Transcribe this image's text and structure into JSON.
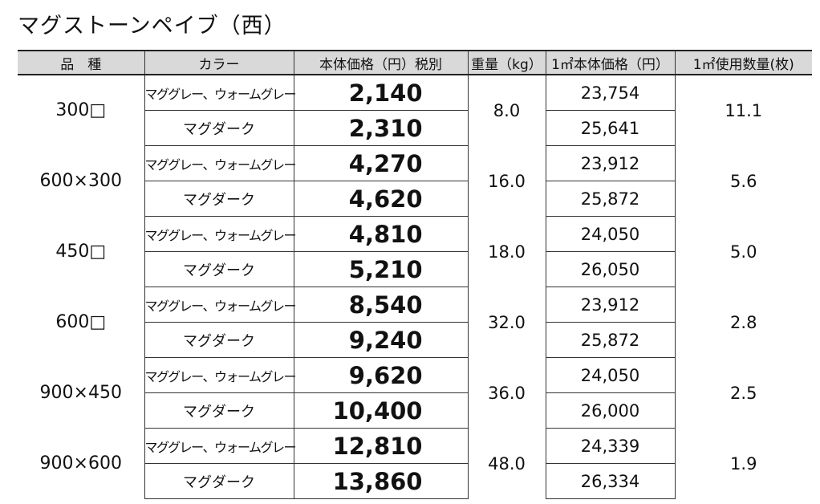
{
  "title": "マグストーンペイブ（西）",
  "headers": [
    "品　種",
    "カラー",
    "本体価格（円）税別",
    "重量（kg）",
    "1㎡本体価格（円）",
    "1㎡使用数量(枚)"
  ],
  "rows": [
    {
      "variety": "300□",
      "weight": "8.0",
      "qty": "11.1",
      "items": [
        {
          "color": "マググレー、ウォームグレー",
          "price": "2,140",
          "per_m2": "23,754"
        },
        {
          "color": "マグダーク",
          "price": "2,310",
          "per_m2": "25,641"
        }
      ]
    },
    {
      "variety": "600×300",
      "weight": "16.0",
      "qty": "5.6",
      "items": [
        {
          "color": "マググレー、ウォームグレー",
          "price": "4,270",
          "per_m2": "23,912"
        },
        {
          "color": "マグダーク",
          "price": "4,620",
          "per_m2": "25,872"
        }
      ]
    },
    {
      "variety": "450□",
      "weight": "18.0",
      "qty": "5.0",
      "items": [
        {
          "color": "マググレー、ウォームグレー",
          "price": "4,810",
          "per_m2": "24,050"
        },
        {
          "color": "マグダーク",
          "price": "5,210",
          "per_m2": "26,050"
        }
      ]
    },
    {
      "variety": "600□",
      "weight": "32.0",
      "qty": "2.8",
      "items": [
        {
          "color": "マググレー、ウォームグレー",
          "price": "8,540",
          "per_m2": "23,912"
        },
        {
          "color": "マグダーク",
          "price": "9,240",
          "per_m2": "25,872"
        }
      ]
    },
    {
      "variety": "900×450",
      "weight": "36.0",
      "qty": "2.5",
      "items": [
        {
          "color": "マググレー、ウォームグレー",
          "price": "9,620",
          "per_m2": "24,050"
        },
        {
          "color": "マグダーク",
          "price": "10,400",
          "per_m2": "26,000"
        }
      ]
    },
    {
      "variety": "900×600",
      "weight": "48.0",
      "qty": "1.9",
      "items": [
        {
          "color": "マググレー、ウォームグレー",
          "price": "12,810",
          "per_m2": "24,339"
        },
        {
          "color": "マグダーク",
          "price": "13,860",
          "per_m2": "26,334"
        }
      ]
    }
  ]
}
